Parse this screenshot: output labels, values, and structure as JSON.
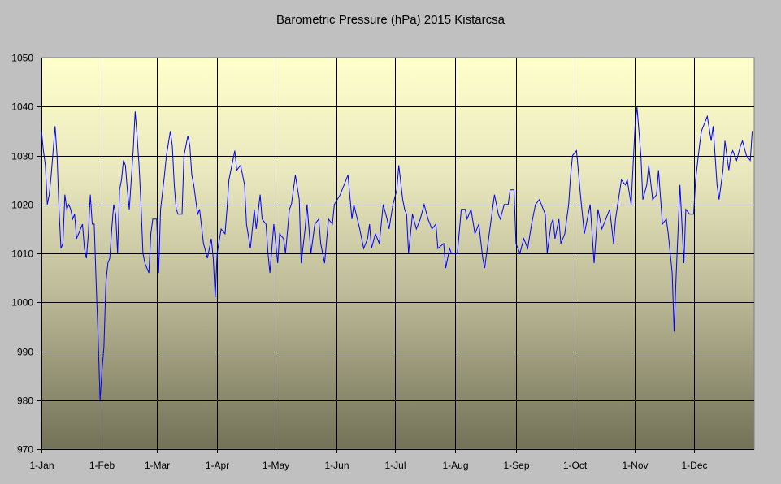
{
  "chart_data": {
    "type": "line",
    "title": "Barometric Pressure (hPa) 2015 Kistarcsa",
    "xlabel": "",
    "ylabel": "",
    "ylim": [
      970,
      1050
    ],
    "xlim": [
      0,
      365
    ],
    "grid": true,
    "yticks": [
      970,
      980,
      990,
      1000,
      1010,
      1020,
      1030,
      1040,
      1050
    ],
    "xticks": [
      {
        "label": "1-Jan",
        "day": 0
      },
      {
        "label": "1-Feb",
        "day": 31
      },
      {
        "label": "1-Mar",
        "day": 59
      },
      {
        "label": "1-Apr",
        "day": 90
      },
      {
        "label": "1-May",
        "day": 120
      },
      {
        "label": "1-Jun",
        "day": 151
      },
      {
        "label": "1-Jul",
        "day": 181
      },
      {
        "label": "1-Aug",
        "day": 212
      },
      {
        "label": "1-Sep",
        "day": 243
      },
      {
        "label": "1-Oct",
        "day": 273
      },
      {
        "label": "1-Nov",
        "day": 304
      },
      {
        "label": "1-Dec",
        "day": 334
      }
    ],
    "series": [
      {
        "name": "Pressure",
        "color": "#0000ff",
        "days": [
          0,
          1,
          2,
          3,
          4,
          5,
          7,
          8,
          9,
          10,
          11,
          12,
          13,
          14,
          15,
          16,
          17,
          18,
          20,
          21,
          22,
          23,
          24,
          25,
          26,
          27,
          28,
          29,
          30,
          31,
          32,
          33,
          34,
          35,
          36,
          37,
          38,
          39,
          40,
          41,
          42,
          43,
          44,
          45,
          46,
          47,
          48,
          49,
          50,
          51,
          52,
          53,
          55,
          56,
          57,
          59,
          60,
          61,
          63,
          64,
          66,
          67,
          68,
          69,
          70,
          72,
          73,
          75,
          76,
          77,
          78,
          80,
          81,
          83,
          85,
          87,
          88,
          89,
          90,
          92,
          94,
          95,
          96,
          99,
          100,
          102,
          104,
          105,
          107,
          109,
          110,
          112,
          113,
          115,
          116,
          117,
          119,
          121,
          122,
          124,
          125,
          127,
          128,
          130,
          132,
          133,
          135,
          136,
          138,
          140,
          142,
          143,
          145,
          147,
          149,
          150,
          153,
          156,
          157,
          159,
          160,
          163,
          165,
          167,
          168,
          169,
          171,
          173,
          175,
          177,
          178,
          180,
          182,
          183,
          185,
          186,
          187,
          188,
          190,
          192,
          194,
          196,
          198,
          200,
          202,
          203,
          206,
          207,
          209,
          210,
          213,
          215,
          217,
          218,
          220,
          222,
          224,
          226,
          227,
          229,
          232,
          234,
          235,
          237,
          239,
          240,
          242,
          243,
          245,
          247,
          249,
          251,
          253,
          255,
          258,
          259,
          261,
          262,
          263,
          265,
          266,
          268,
          270,
          271,
          272,
          274,
          276,
          278,
          281,
          283,
          285,
          287,
          289,
          291,
          293,
          294,
          297,
          299,
          300,
          302,
          304,
          305,
          307,
          308,
          310,
          311,
          313,
          315,
          316,
          318,
          320,
          321,
          323,
          324,
          325,
          327,
          329,
          330,
          332,
          334,
          335,
          337,
          338,
          340,
          341,
          343,
          344,
          345,
          346,
          347,
          349,
          350,
          352,
          353,
          354,
          356,
          358,
          359,
          361,
          363,
          364
        ],
        "values": [
          1035,
          1031,
          1028,
          1020,
          1022,
          1026,
          1036,
          1030,
          1019,
          1011,
          1012,
          1022,
          1019,
          1020,
          1019,
          1017,
          1018,
          1013,
          1015,
          1016,
          1011,
          1009,
          1014,
          1022,
          1016,
          1016,
          1004,
          993,
          980,
          986,
          991,
          1004,
          1008,
          1009,
          1015,
          1020,
          1018,
          1010,
          1023,
          1025,
          1029,
          1028,
          1023,
          1019,
          1025,
          1031,
          1039,
          1034,
          1028,
          1020,
          1010,
          1008,
          1006,
          1014,
          1017,
          1017,
          1006,
          1019,
          1026,
          1030,
          1035,
          1032,
          1024,
          1019,
          1018,
          1018,
          1030,
          1034,
          1032,
          1026,
          1024,
          1018,
          1019,
          1012,
          1009,
          1013,
          1009,
          1001,
          1010,
          1015,
          1014,
          1019,
          1025,
          1031,
          1027,
          1028,
          1024,
          1016,
          1011,
          1019,
          1015,
          1022,
          1017,
          1016,
          1010,
          1006,
          1016,
          1008,
          1014,
          1013,
          1010,
          1019,
          1020,
          1026,
          1021,
          1008,
          1015,
          1020,
          1010,
          1016,
          1017,
          1012,
          1008,
          1017,
          1016,
          1020,
          1022,
          1025,
          1026,
          1017,
          1020,
          1015,
          1011,
          1013,
          1016,
          1011,
          1014,
          1012,
          1020,
          1017,
          1015,
          1020,
          1023,
          1028,
          1021,
          1019,
          1018,
          1010,
          1018,
          1015,
          1017,
          1020,
          1017,
          1015,
          1016,
          1011,
          1012,
          1007,
          1011,
          1010,
          1010,
          1019,
          1019,
          1017,
          1019,
          1014,
          1016,
          1009,
          1007,
          1013,
          1022,
          1018,
          1017,
          1020,
          1020,
          1023,
          1023,
          1012,
          1010,
          1013,
          1011,
          1016,
          1020,
          1021,
          1018,
          1010,
          1016,
          1017,
          1013,
          1017,
          1012,
          1014,
          1020,
          1026,
          1030,
          1031,
          1022,
          1014,
          1020,
          1008,
          1019,
          1015,
          1017,
          1019,
          1012,
          1017,
          1025,
          1024,
          1025,
          1020,
          1036,
          1040,
          1030,
          1021,
          1024,
          1028,
          1021,
          1022,
          1027,
          1016,
          1017,
          1014,
          1006,
          994,
          1005,
          1024,
          1008,
          1019,
          1018,
          1018,
          1025,
          1032,
          1035,
          1037,
          1038,
          1033,
          1036,
          1030,
          1024,
          1021,
          1027,
          1033,
          1027,
          1030,
          1031,
          1029,
          1032,
          1033,
          1030,
          1029,
          1035
        ]
      }
    ]
  }
}
